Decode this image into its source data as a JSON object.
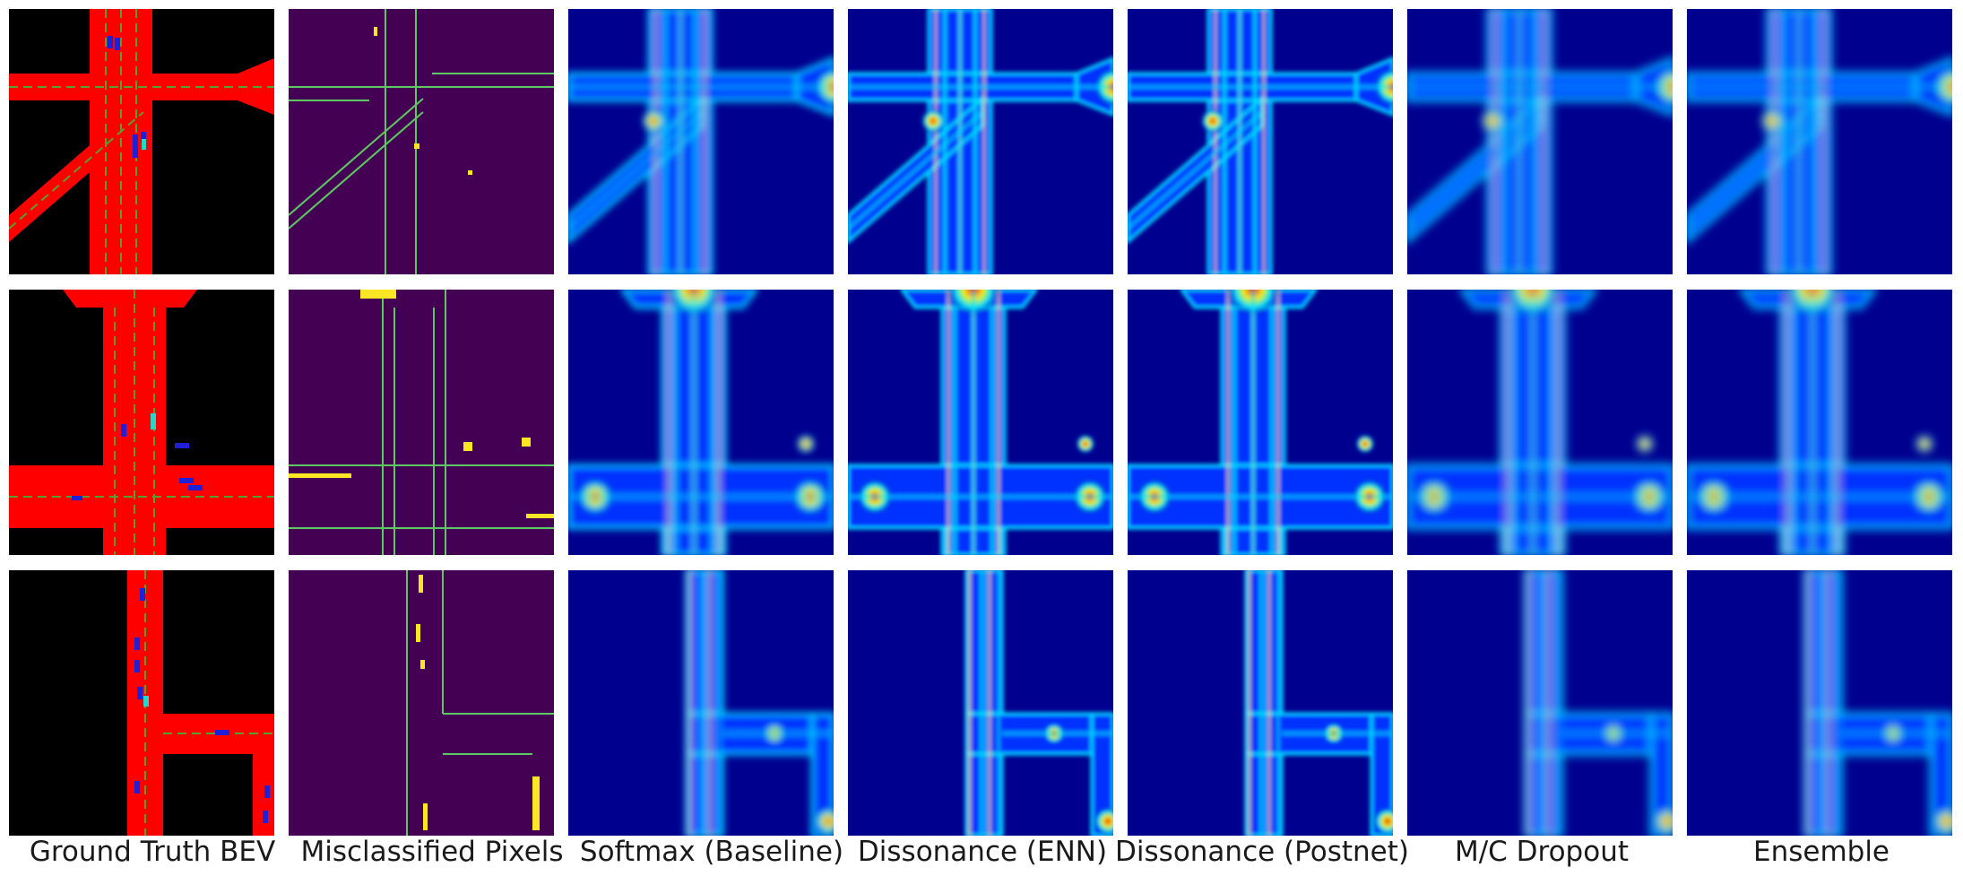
{
  "figure": {
    "columns": [
      {
        "key": "gt",
        "label": "Ground Truth BEV"
      },
      {
        "key": "mis",
        "label": "Misclassified Pixels"
      },
      {
        "key": "softmax",
        "label": "Softmax (Baseline)"
      },
      {
        "key": "enn",
        "label": "Dissonance (ENN)"
      },
      {
        "key": "postnet",
        "label": "Dissonance (Postnet)"
      },
      {
        "key": "mcdrop",
        "label": "M/C Dropout"
      },
      {
        "key": "ensemble",
        "label": "Ensemble"
      }
    ],
    "rows": [
      {
        "key": "scene-1",
        "layout": "cross-diagonal"
      },
      {
        "key": "scene-2",
        "layout": "cross-double"
      },
      {
        "key": "scene-3",
        "layout": "tee-right"
      }
    ],
    "colors": {
      "road": "#ff0000",
      "background": "#000000",
      "lane": "#5a9e2f",
      "vehicle": "#1f1fd6",
      "pedestrian": "#28d6c8",
      "viridis_dark": "#440154",
      "viridis_yellow": "#fde725",
      "viridis_green": "#5ec962",
      "jet_low": "#00008f",
      "jet_blue": "#0030ff",
      "jet_cyan": "#00e5ff",
      "jet_yellow": "#ffee00",
      "jet_red": "#e00000"
    }
  }
}
